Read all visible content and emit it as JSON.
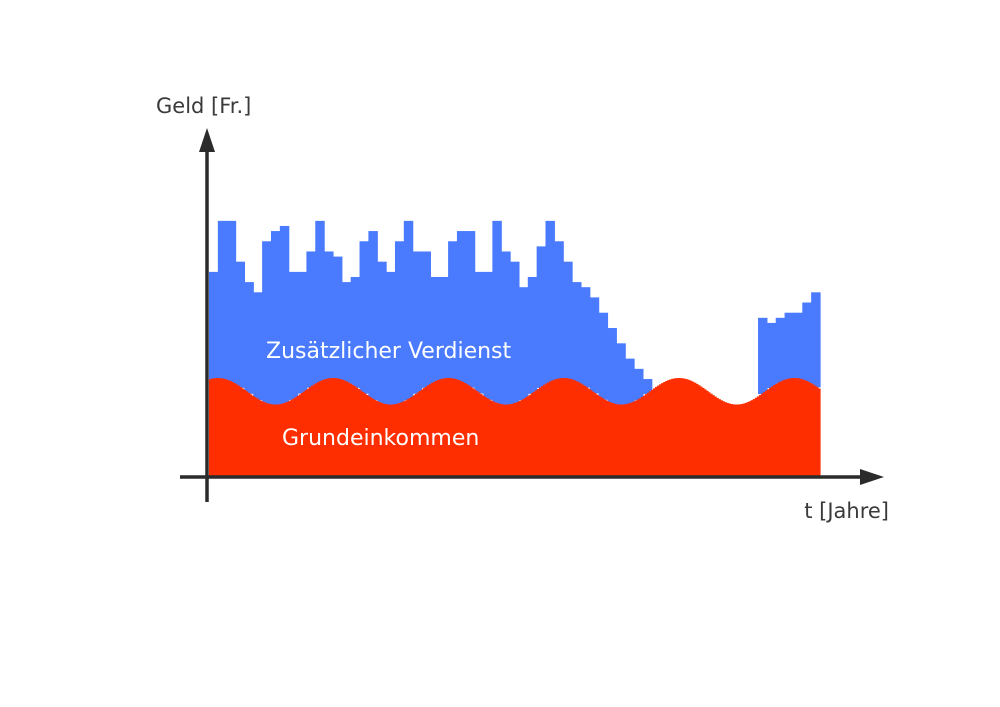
{
  "chart_data": {
    "type": "area",
    "stacked": true,
    "ylabel": "Geld [Fr.]",
    "xlabel": "t [Jahre]",
    "series": [
      {
        "name": "Grundeinkommen",
        "color": "#ff2e00",
        "shape": "sinusoidal",
        "mean": 0.83,
        "amplitude": 0.13,
        "periods": 5.3,
        "phase": 1.1
      },
      {
        "name": "Zusätzlicher Verdienst",
        "color": "#4a7bff",
        "shape": "step",
        "step_tops": [
          2.0,
          2.5,
          2.5,
          2.1,
          1.9,
          1.8,
          2.3,
          2.4,
          2.45,
          2.0,
          2.0,
          2.2,
          2.5,
          2.2,
          2.15,
          1.9,
          1.95,
          2.3,
          2.4,
          2.1,
          2.0,
          2.3,
          2.5,
          2.2,
          2.2,
          1.95,
          1.95,
          2.3,
          2.4,
          2.4,
          2.0,
          2.0,
          2.5,
          2.2,
          2.1,
          1.85,
          1.95,
          2.25,
          2.5,
          2.3,
          2.1,
          1.9,
          1.85,
          1.75,
          1.6,
          1.45,
          1.3,
          1.15,
          1.05,
          0.95,
          0.85,
          0.75,
          0.7,
          0.65,
          0.6,
          0.55,
          0.5,
          0.4,
          0.5,
          0.55,
          0.6,
          0.7,
          1.55,
          1.5,
          1.55,
          1.6,
          1.6,
          1.7,
          1.8
        ]
      }
    ],
    "xlim": [
      0,
      69
    ],
    "ylim": [
      0,
      3.4
    ],
    "grid": false,
    "legend": "inline"
  }
}
